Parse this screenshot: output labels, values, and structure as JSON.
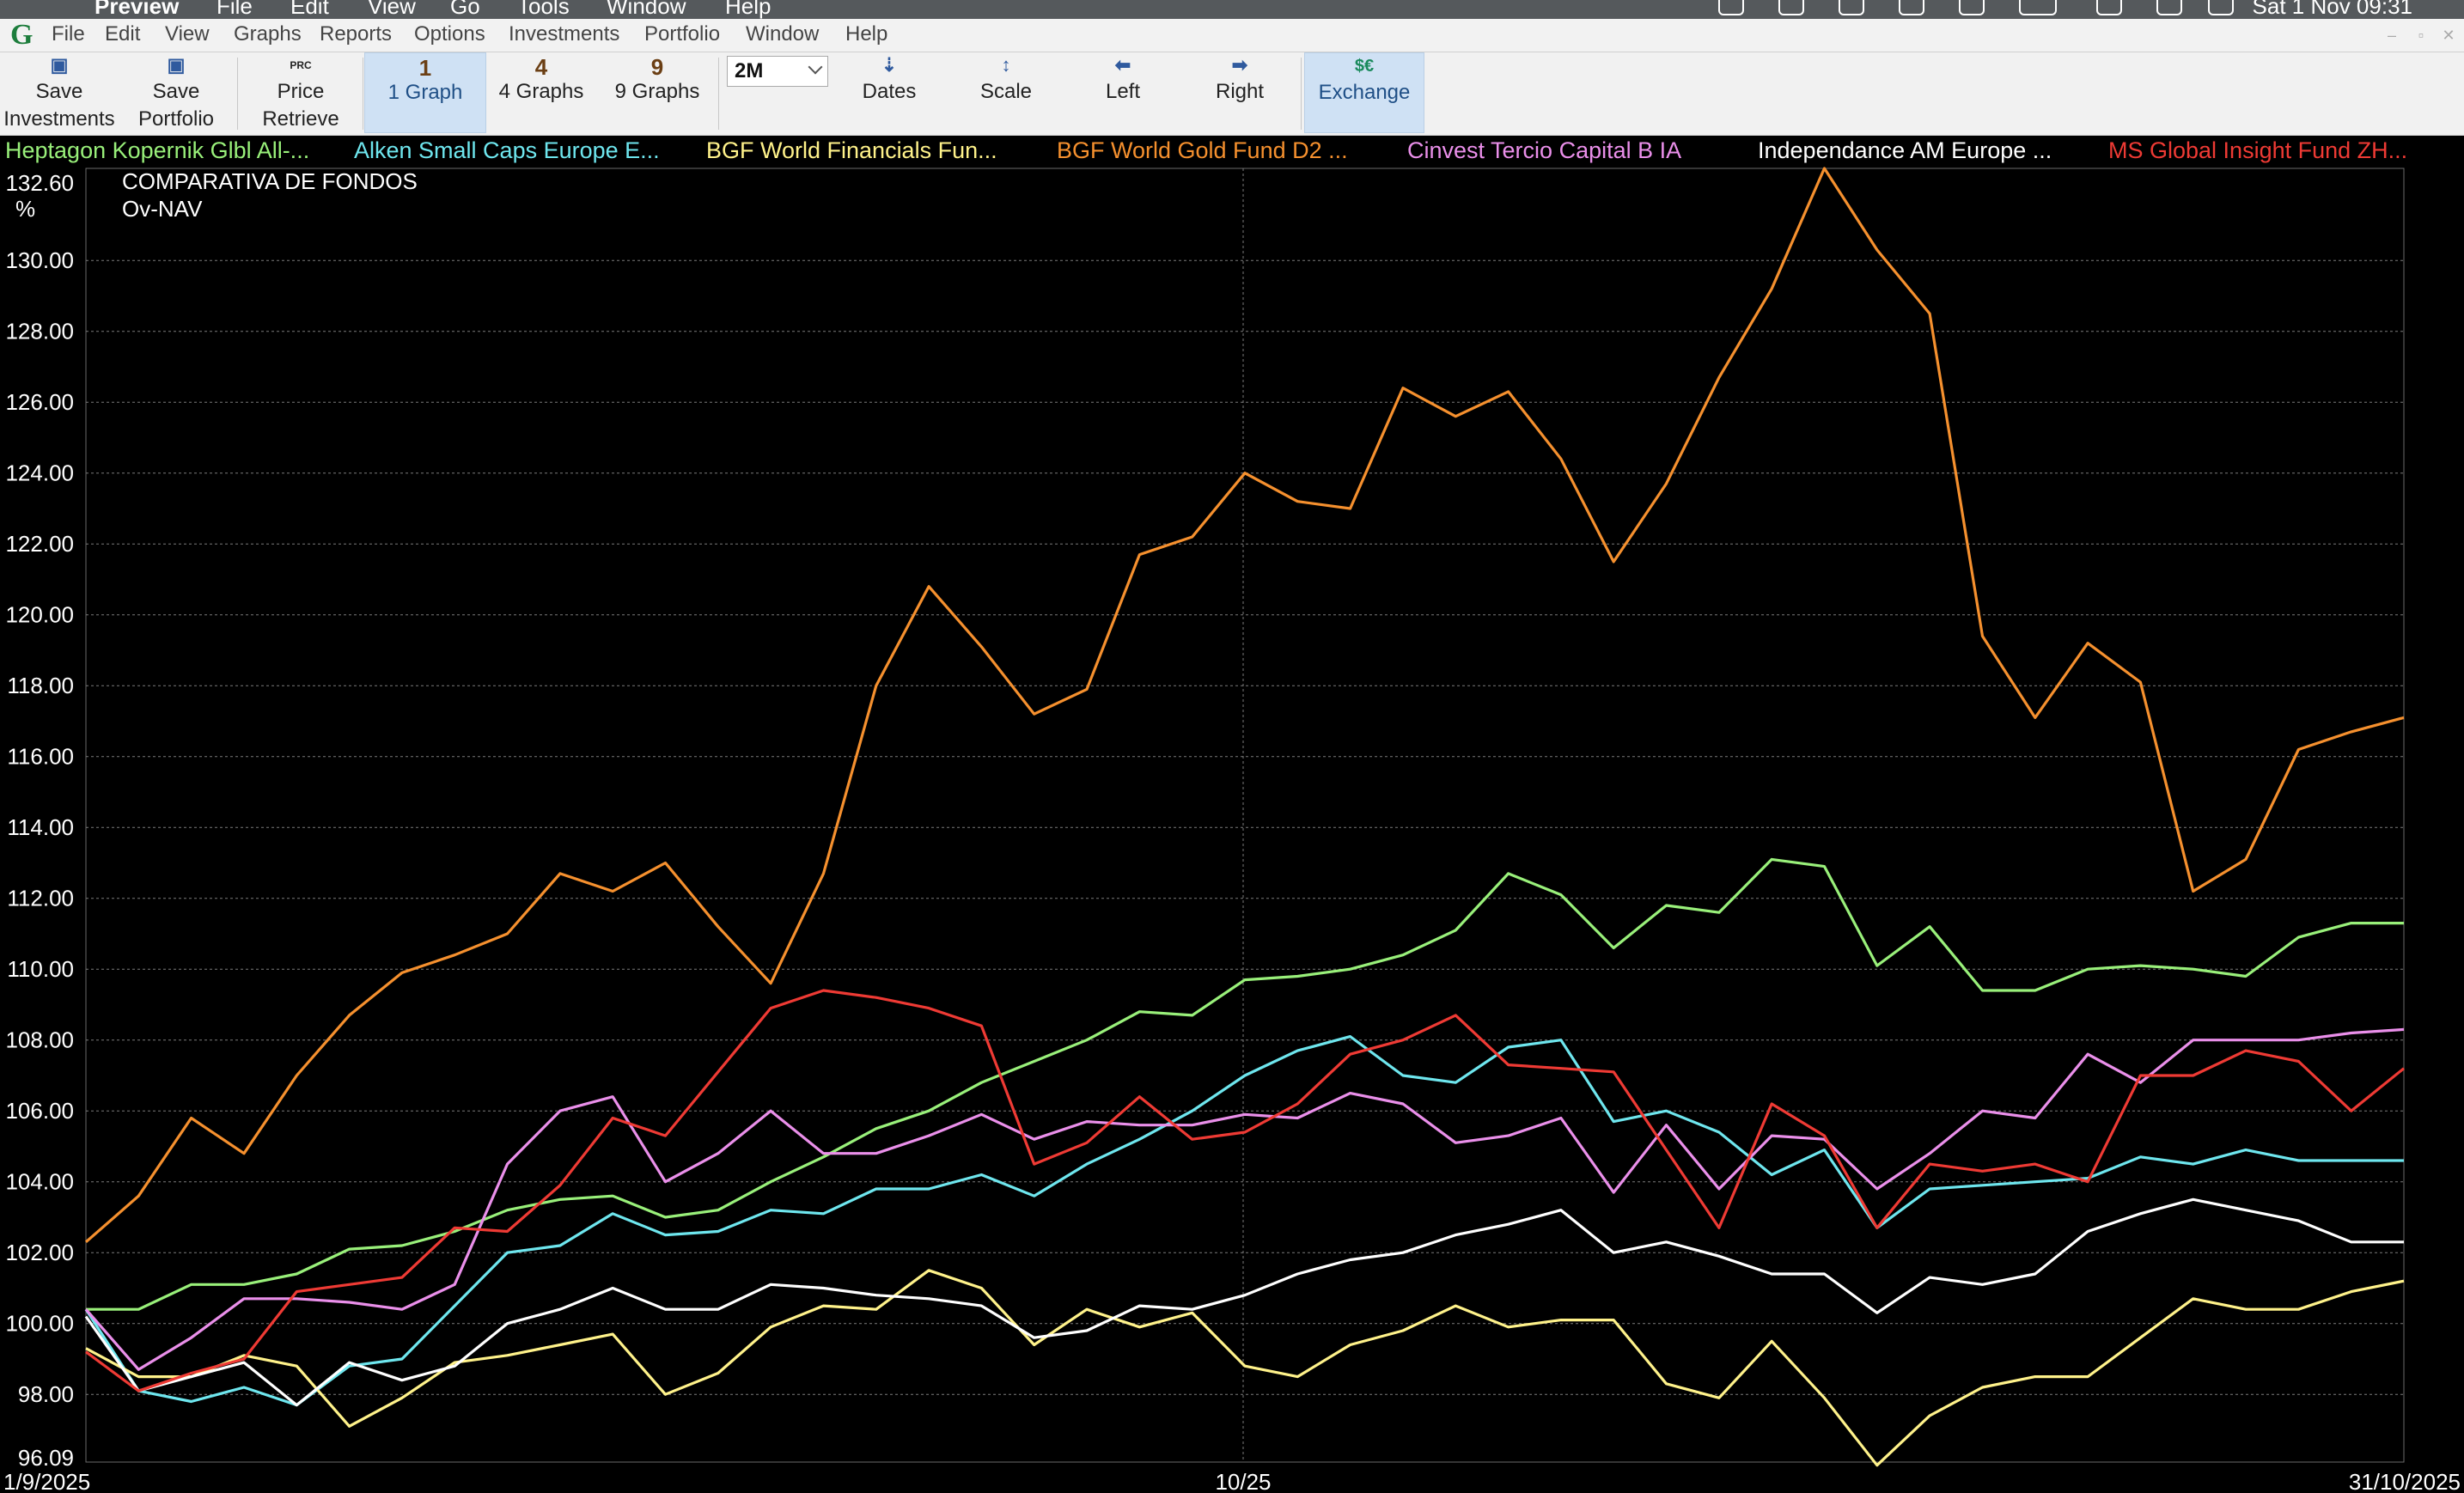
{
  "os": {
    "app_name": "Preview",
    "menus": [
      "File",
      "Edit",
      "View",
      "Go",
      "Tools",
      "Window",
      "Help"
    ],
    "clock": "Sat 1 Nov 09:31"
  },
  "menubar": {
    "items": [
      "File",
      "Edit",
      "View",
      "Graphs",
      "Reports",
      "Options",
      "Investments",
      "Portfolio",
      "Window",
      "Help"
    ]
  },
  "toolbar": {
    "save_investments": [
      "Save",
      "Investments"
    ],
    "save_portfolio": [
      "Save",
      "Portfolio"
    ],
    "price_retrieve": [
      "Price",
      "Retrieve"
    ],
    "price_icon_text": "PRC",
    "graphs": [
      {
        "num": "1",
        "label": "1 Graph"
      },
      {
        "num": "4",
        "label": "4 Graphs"
      },
      {
        "num": "9",
        "label": "9 Graphs"
      }
    ],
    "period": "2M",
    "dates": "Dates",
    "scale": "Scale",
    "left": "Left",
    "right": "Right",
    "exchange": "Exchange",
    "exchange_icon_text": "$€"
  },
  "chart_data": {
    "type": "line",
    "title": "COMPARATIVA DE FONDOS",
    "subtitle": "Ov-NAV",
    "ylabel": "%",
    "ylim": [
      96.09,
      132.6
    ],
    "yticks": [
      "132.60",
      "130.00",
      "128.00",
      "126.00",
      "124.00",
      "122.00",
      "120.00",
      "118.00",
      "116.00",
      "114.00",
      "112.00",
      "110.00",
      "108.00",
      "106.00",
      "104.00",
      "102.00",
      "100.00",
      "98.00",
      "96.09"
    ],
    "x_labels": [
      "1/9/2025",
      "10/25",
      "31/10/2025"
    ],
    "grid": true,
    "legend_position": "top",
    "series": [
      {
        "name": "Heptagon Kopernik Glbl All-...",
        "color": "#99f07a",
        "values": [
          100.4,
          100.4,
          101.1,
          101.1,
          101.4,
          102.1,
          102.2,
          102.6,
          103.2,
          103.5,
          103.6,
          103.0,
          103.2,
          104.0,
          104.7,
          105.5,
          106.0,
          106.8,
          107.4,
          108.0,
          108.8,
          108.7,
          109.7,
          109.8,
          110.0,
          110.4,
          111.1,
          112.7,
          112.1,
          110.6,
          111.8,
          111.6,
          113.1,
          112.9,
          110.1,
          111.2,
          109.4,
          109.4,
          110.0,
          110.1,
          110.0,
          109.8,
          110.9,
          111.3,
          111.3
        ]
      },
      {
        "name": "Alken Small Caps Europe E...",
        "color": "#6ee6ee",
        "values": [
          100.4,
          98.1,
          97.8,
          98.2,
          97.7,
          98.8,
          99.0,
          100.5,
          102.0,
          102.2,
          103.1,
          102.5,
          102.6,
          103.2,
          103.1,
          103.8,
          103.8,
          104.2,
          103.6,
          104.5,
          105.2,
          106.0,
          107.0,
          107.7,
          108.1,
          107.0,
          106.8,
          107.8,
          108.0,
          105.7,
          106.0,
          105.4,
          104.2,
          104.9,
          102.7,
          103.8,
          103.9,
          104.0,
          104.1,
          104.7,
          104.5,
          104.9,
          104.6,
          104.6,
          104.6
        ]
      },
      {
        "name": "BGF World Financials Fun...",
        "color": "#fff28a",
        "values": [
          99.3,
          98.5,
          98.5,
          99.1,
          98.8,
          97.1,
          97.9,
          98.9,
          99.1,
          99.4,
          99.7,
          98.0,
          98.6,
          99.9,
          100.5,
          100.4,
          101.5,
          101.0,
          99.4,
          100.4,
          99.9,
          100.3,
          98.8,
          98.5,
          99.4,
          99.8,
          100.5,
          99.9,
          100.1,
          100.1,
          98.3,
          97.9,
          99.5,
          97.9,
          96.0,
          97.4,
          98.2,
          98.5,
          98.5,
          99.6,
          100.7,
          100.4,
          100.4,
          100.9,
          101.2
        ]
      },
      {
        "name": "BGF World Gold Fund D2 ...",
        "color": "#f5902e",
        "values": [
          102.3,
          103.6,
          105.8,
          104.8,
          107.0,
          108.7,
          109.9,
          110.4,
          111.0,
          112.7,
          112.2,
          113.0,
          111.2,
          109.6,
          112.7,
          118.0,
          120.8,
          119.1,
          117.2,
          117.9,
          121.7,
          122.2,
          124.0,
          123.2,
          123.0,
          126.4,
          125.6,
          126.3,
          124.4,
          121.5,
          123.7,
          126.7,
          129.2,
          132.6,
          130.3,
          128.5,
          119.4,
          117.1,
          119.2,
          118.1,
          112.2,
          113.1,
          116.2,
          116.7,
          117.1
        ]
      },
      {
        "name": "Cinvest Tercio Capital B IA",
        "color": "#ea8fea",
        "values": [
          100.4,
          98.7,
          99.6,
          100.7,
          100.7,
          100.6,
          100.4,
          101.1,
          104.5,
          106.0,
          106.4,
          104.0,
          104.8,
          106.0,
          104.8,
          104.8,
          105.3,
          105.9,
          105.2,
          105.7,
          105.6,
          105.6,
          105.9,
          105.8,
          106.5,
          106.2,
          105.1,
          105.3,
          105.8,
          103.7,
          105.6,
          103.8,
          105.3,
          105.2,
          103.8,
          104.8,
          106.0,
          105.8,
          107.6,
          106.8,
          108.0,
          108.0,
          108.0,
          108.2,
          108.3
        ]
      },
      {
        "name": "Independance AM Europe ...",
        "color": "#ffffff",
        "values": [
          100.2,
          98.1,
          98.5,
          98.9,
          97.7,
          98.9,
          98.4,
          98.8,
          100.0,
          100.4,
          101.0,
          100.4,
          100.4,
          101.1,
          101.0,
          100.8,
          100.7,
          100.5,
          99.6,
          99.8,
          100.5,
          100.4,
          100.8,
          101.4,
          101.8,
          102.0,
          102.5,
          102.8,
          103.2,
          102.0,
          102.3,
          101.9,
          101.4,
          101.4,
          100.3,
          101.3,
          101.1,
          101.4,
          102.6,
          103.1,
          103.5,
          103.2,
          102.9,
          102.3,
          102.3
        ]
      },
      {
        "name": "MS Global Insight Fund ZH...",
        "color": "#ee3a34",
        "values": [
          99.2,
          98.1,
          98.6,
          99.0,
          100.9,
          101.1,
          101.3,
          102.7,
          102.6,
          103.9,
          105.8,
          105.3,
          107.1,
          108.9,
          109.4,
          109.2,
          108.9,
          108.4,
          104.5,
          105.1,
          106.4,
          105.2,
          105.4,
          106.2,
          107.6,
          108.0,
          108.7,
          107.3,
          107.2,
          107.1,
          104.9,
          102.7,
          106.2,
          105.3,
          102.7,
          104.5,
          104.3,
          104.5,
          104.0,
          107.0,
          107.0,
          107.7,
          107.4,
          106.0,
          107.2
        ]
      }
    ]
  }
}
